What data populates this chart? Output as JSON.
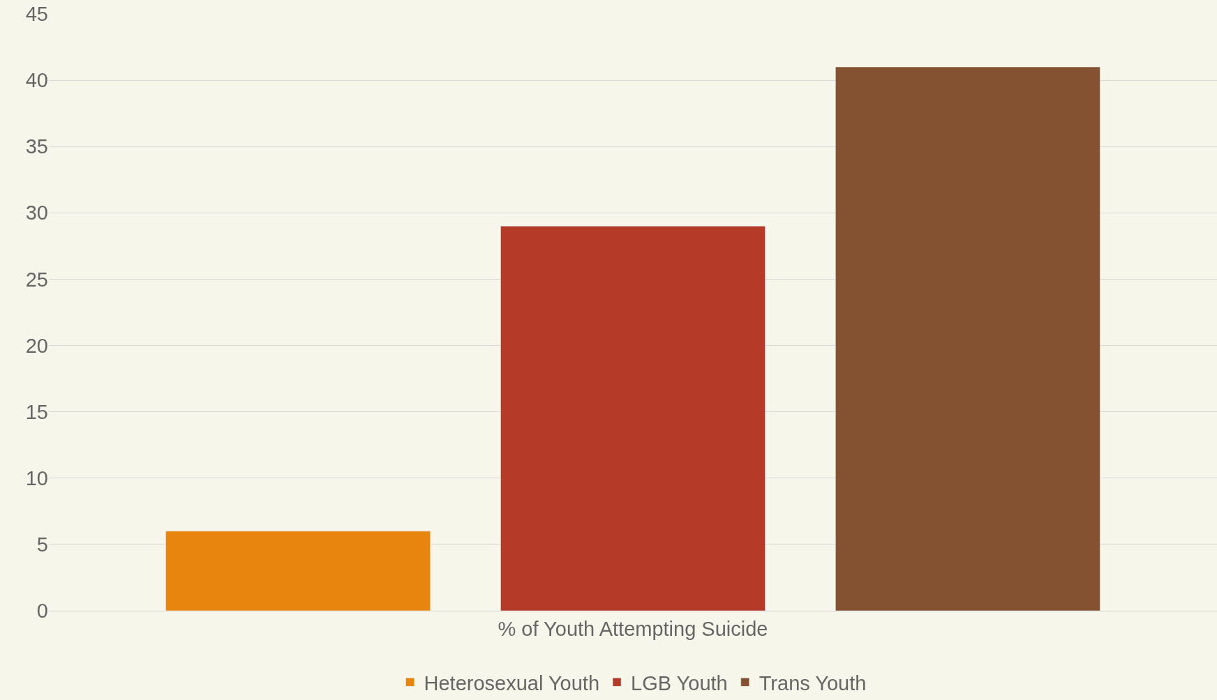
{
  "chart_data": {
    "type": "bar",
    "categories": [
      "% of Youth Attempting Suicide"
    ],
    "series": [
      {
        "name": "Heterosexual Youth",
        "color": "#e8850f",
        "values": [
          6
        ]
      },
      {
        "name": "LGB Youth",
        "color": "#b53a27",
        "values": [
          29
        ]
      },
      {
        "name": "Trans Youth",
        "color": "#845231",
        "values": [
          41
        ]
      }
    ],
    "ylim": [
      0,
      45
    ],
    "yticks": [
      0,
      5,
      10,
      15,
      20,
      25,
      30,
      35,
      40,
      45
    ],
    "grid": "y",
    "legend": "bottom"
  }
}
